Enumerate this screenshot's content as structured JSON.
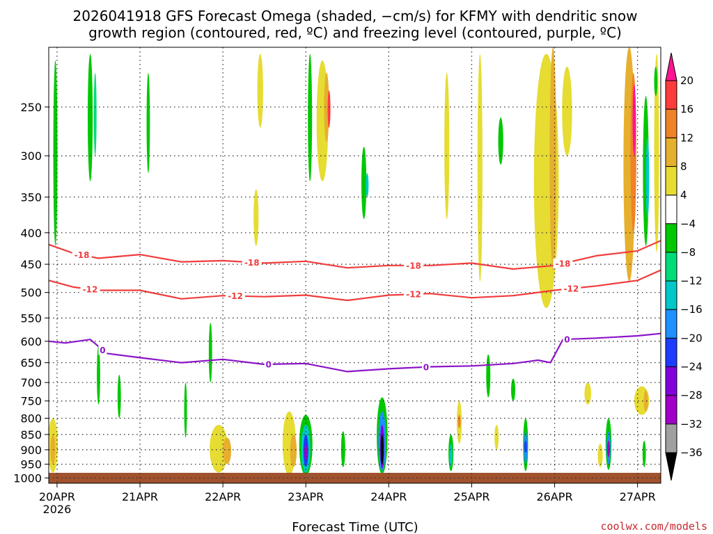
{
  "chart_data": {
    "type": "heatmap",
    "title_line1": "2026041918 GFS Forecast Omega (shaded, −cm/s) for KFMY with dendritic snow",
    "title_line2": "growth region (contoured, red, ºC) and freezing level (contoured, purple, ºC)",
    "xlabel": "Forecast Time (UTC)",
    "ylabel": "",
    "x_ticks": [
      {
        "label": "20APR",
        "sub": "2026",
        "day": 0
      },
      {
        "label": "21APR",
        "sub": "",
        "day": 1
      },
      {
        "label": "22APR",
        "sub": "",
        "day": 2
      },
      {
        "label": "23APR",
        "sub": "",
        "day": 3
      },
      {
        "label": "24APR",
        "sub": "",
        "day": 4
      },
      {
        "label": "25APR",
        "sub": "",
        "day": 5
      },
      {
        "label": "26APR",
        "sub": "",
        "day": 6
      },
      {
        "label": "27APR",
        "sub": "",
        "day": 7
      }
    ],
    "xlim_days": [
      -0.1,
      7.28
    ],
    "y_ticks": [
      "250",
      "300",
      "350",
      "400",
      "450",
      "500",
      "550",
      "600",
      "650",
      "700",
      "750",
      "800",
      "850",
      "900",
      "950",
      "1000"
    ],
    "ylim_hpa": [
      200,
      1020
    ],
    "colorbar": {
      "labels": [
        "20",
        "16",
        "12",
        "8",
        "4",
        "−4",
        "−8",
        "−12",
        "−16",
        "−20",
        "−24",
        "−28",
        "−32",
        "−36"
      ],
      "colors": [
        "#ff1493",
        "#ff3c3c",
        "#f08228",
        "#e6af2d",
        "#e6dc32",
        "#ffffff",
        "#00c800",
        "#00dc78",
        "#00c8c8",
        "#1e90ff",
        "#1e3cff",
        "#8200dc",
        "#a000c8",
        "#a0a0a0",
        "#000000"
      ]
    },
    "contours": [
      {
        "label": "-18",
        "color": "#f03c3c",
        "x": [
          -0.1,
          0.2,
          0.5,
          1.0,
          1.5,
          2.0,
          2.5,
          3.0,
          3.5,
          4.0,
          4.5,
          5.0,
          5.5,
          6.0,
          6.5,
          7.0,
          7.28
        ],
        "p": [
          418,
          432,
          440,
          434,
          446,
          444,
          448,
          445,
          456,
          452,
          452,
          448,
          458,
          452,
          436,
          428,
          412
        ],
        "labels_at": [
          0.3,
          2.35,
          4.3,
          6.1
        ]
      },
      {
        "label": "-12",
        "color": "#f03c3c",
        "x": [
          -0.1,
          0.2,
          0.5,
          1.0,
          1.5,
          2.0,
          2.5,
          3.0,
          3.5,
          4.0,
          4.5,
          5.0,
          5.5,
          6.0,
          6.5,
          7.0,
          7.28
        ],
        "p": [
          478,
          490,
          496,
          496,
          512,
          506,
          508,
          505,
          515,
          505,
          502,
          510,
          506,
          496,
          488,
          478,
          460
        ],
        "labels_at": [
          0.4,
          2.15,
          4.3,
          6.2
        ]
      },
      {
        "label": "0",
        "color": "#8c14c8",
        "x": [
          -0.1,
          0.1,
          0.4,
          0.6,
          1.0,
          1.5,
          2.0,
          2.5,
          3.0,
          3.5,
          4.0,
          4.5,
          5.0,
          5.5,
          5.8,
          5.95,
          6.1,
          6.5,
          7.0,
          7.28
        ],
        "p": [
          600,
          604,
          596,
          628,
          638,
          650,
          642,
          654,
          652,
          672,
          665,
          660,
          658,
          652,
          644,
          650,
          596,
          593,
          588,
          583
        ],
        "labels_at": [
          0.55,
          2.55,
          4.45,
          6.15
        ]
      }
    ],
    "omega_cells": [
      {
        "x": -0.02,
        "p1": 210,
        "p2": 420,
        "w": 0.05,
        "c": 6
      },
      {
        "x": 0.4,
        "p1": 205,
        "p2": 330,
        "w": 0.06,
        "c": 6
      },
      {
        "x": 0.46,
        "p1": 220,
        "p2": 300,
        "w": 0.03,
        "c": 7
      },
      {
        "x": 1.1,
        "p1": 220,
        "p2": 320,
        "w": 0.04,
        "c": 6
      },
      {
        "x": 2.45,
        "p1": 205,
        "p2": 270,
        "w": 0.07,
        "c": 4
      },
      {
        "x": 2.4,
        "p1": 340,
        "p2": 420,
        "w": 0.06,
        "c": 4
      },
      {
        "x": 3.2,
        "p1": 210,
        "p2": 330,
        "w": 0.14,
        "c": 4
      },
      {
        "x": 3.25,
        "p1": 220,
        "p2": 285,
        "w": 0.06,
        "c": 3
      },
      {
        "x": 3.28,
        "p1": 235,
        "p2": 270,
        "w": 0.03,
        "c": 1
      },
      {
        "x": 3.05,
        "p1": 205,
        "p2": 330,
        "w": 0.05,
        "c": 6
      },
      {
        "x": 3.7,
        "p1": 290,
        "p2": 380,
        "w": 0.06,
        "c": 6
      },
      {
        "x": 3.74,
        "p1": 320,
        "p2": 350,
        "w": 0.03,
        "c": 8
      },
      {
        "x": 4.7,
        "p1": 220,
        "p2": 380,
        "w": 0.06,
        "c": 4
      },
      {
        "x": 5.1,
        "p1": 205,
        "p2": 480,
        "w": 0.06,
        "c": 4
      },
      {
        "x": 5.35,
        "p1": 260,
        "p2": 310,
        "w": 0.06,
        "c": 6
      },
      {
        "x": 5.9,
        "p1": 205,
        "p2": 530,
        "w": 0.3,
        "c": 4
      },
      {
        "x": 5.98,
        "p1": 200,
        "p2": 460,
        "w": 0.08,
        "c": 3
      },
      {
        "x": 6.15,
        "p1": 215,
        "p2": 300,
        "w": 0.12,
        "c": 4
      },
      {
        "x": 6.9,
        "p1": 200,
        "p2": 480,
        "w": 0.14,
        "c": 3
      },
      {
        "x": 6.95,
        "p1": 220,
        "p2": 400,
        "w": 0.07,
        "c": 2
      },
      {
        "x": 6.96,
        "p1": 230,
        "p2": 300,
        "w": 0.04,
        "c": 0
      },
      {
        "x": 7.1,
        "p1": 240,
        "p2": 420,
        "w": 0.07,
        "c": 6
      },
      {
        "x": 7.12,
        "p1": 280,
        "p2": 380,
        "w": 0.04,
        "c": 8
      },
      {
        "x": 7.23,
        "p1": 205,
        "p2": 430,
        "w": 0.06,
        "c": 4
      },
      {
        "x": 7.22,
        "p1": 215,
        "p2": 240,
        "w": 0.04,
        "c": 6
      },
      {
        "x": 0.5,
        "p1": 610,
        "p2": 760,
        "w": 0.04,
        "c": 6
      },
      {
        "x": 0.75,
        "p1": 680,
        "p2": 800,
        "w": 0.04,
        "c": 6
      },
      {
        "x": 1.55,
        "p1": 700,
        "p2": 860,
        "w": 0.03,
        "c": 6
      },
      {
        "x": 1.85,
        "p1": 560,
        "p2": 700,
        "w": 0.04,
        "c": 6
      },
      {
        "x": 5.2,
        "p1": 630,
        "p2": 740,
        "w": 0.05,
        "c": 6
      },
      {
        "x": 5.5,
        "p1": 690,
        "p2": 750,
        "w": 0.05,
        "c": 6
      },
      {
        "x": -0.05,
        "p1": 800,
        "p2": 980,
        "w": 0.12,
        "c": 4
      },
      {
        "x": -0.05,
        "p1": 850,
        "p2": 950,
        "w": 0.06,
        "c": 3
      },
      {
        "x": 1.95,
        "p1": 820,
        "p2": 980,
        "w": 0.22,
        "c": 4
      },
      {
        "x": 2.05,
        "p1": 860,
        "p2": 950,
        "w": 0.1,
        "c": 3
      },
      {
        "x": 2.8,
        "p1": 780,
        "p2": 990,
        "w": 0.16,
        "c": 4
      },
      {
        "x": 2.85,
        "p1": 850,
        "p2": 960,
        "w": 0.08,
        "c": 3
      },
      {
        "x": 3.0,
        "p1": 790,
        "p2": 990,
        "w": 0.16,
        "c": 6
      },
      {
        "x": 3.0,
        "p1": 820,
        "p2": 980,
        "w": 0.11,
        "c": 8
      },
      {
        "x": 3.0,
        "p1": 850,
        "p2": 960,
        "w": 0.06,
        "c": 10
      },
      {
        "x": 3.0,
        "p1": 880,
        "p2": 940,
        "w": 0.03,
        "c": 12
      },
      {
        "x": 3.92,
        "p1": 740,
        "p2": 985,
        "w": 0.13,
        "c": 6
      },
      {
        "x": 3.92,
        "p1": 780,
        "p2": 975,
        "w": 0.09,
        "c": 9
      },
      {
        "x": 3.92,
        "p1": 820,
        "p2": 965,
        "w": 0.05,
        "c": 11
      },
      {
        "x": 3.92,
        "p1": 850,
        "p2": 950,
        "w": 0.022,
        "c": 14
      },
      {
        "x": 3.45,
        "p1": 840,
        "p2": 960,
        "w": 0.05,
        "c": 6
      },
      {
        "x": 4.75,
        "p1": 850,
        "p2": 975,
        "w": 0.06,
        "c": 6
      },
      {
        "x": 4.75,
        "p1": 880,
        "p2": 960,
        "w": 0.03,
        "c": 8
      },
      {
        "x": 4.85,
        "p1": 750,
        "p2": 880,
        "w": 0.06,
        "c": 4
      },
      {
        "x": 4.85,
        "p1": 790,
        "p2": 830,
        "w": 0.03,
        "c": 2
      },
      {
        "x": 5.65,
        "p1": 800,
        "p2": 975,
        "w": 0.06,
        "c": 6
      },
      {
        "x": 5.65,
        "p1": 840,
        "p2": 950,
        "w": 0.04,
        "c": 9
      },
      {
        "x": 5.65,
        "p1": 870,
        "p2": 910,
        "w": 0.02,
        "c": 10
      },
      {
        "x": 6.65,
        "p1": 800,
        "p2": 970,
        "w": 0.07,
        "c": 6
      },
      {
        "x": 6.65,
        "p1": 840,
        "p2": 950,
        "w": 0.05,
        "c": 9
      },
      {
        "x": 6.65,
        "p1": 870,
        "p2": 925,
        "w": 0.025,
        "c": 12
      },
      {
        "x": 6.55,
        "p1": 880,
        "p2": 960,
        "w": 0.06,
        "c": 4
      },
      {
        "x": 7.08,
        "p1": 870,
        "p2": 960,
        "w": 0.04,
        "c": 6
      },
      {
        "x": 7.05,
        "p1": 710,
        "p2": 790,
        "w": 0.18,
        "c": 4
      },
      {
        "x": 7.1,
        "p1": 720,
        "p2": 780,
        "w": 0.05,
        "c": 3
      },
      {
        "x": 6.4,
        "p1": 700,
        "p2": 760,
        "w": 0.08,
        "c": 4
      },
      {
        "x": 5.3,
        "p1": 820,
        "p2": 900,
        "w": 0.05,
        "c": 4
      }
    ]
  },
  "credit": "coolwx.com/models"
}
